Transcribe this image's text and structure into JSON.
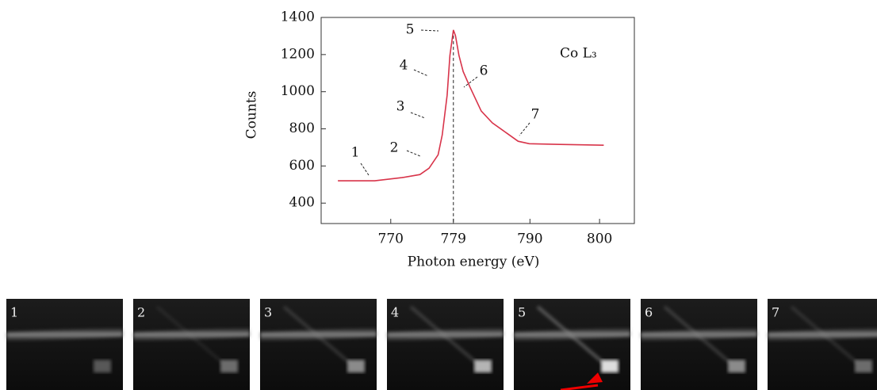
{
  "chart_data": {
    "type": "line",
    "x_label": "Photon energy (eV)",
    "y_label": "Counts",
    "inset_label": "Co L₃",
    "x": [
      762.4,
      767.7,
      771.6,
      774.2,
      775.5,
      776.8,
      777.4,
      778.1,
      778.5,
      779,
      779.3,
      779.8,
      780.4,
      781.4,
      783,
      784.6,
      786.7,
      788.3,
      789.9,
      794.3,
      800.6
    ],
    "values": [
      520,
      520,
      537,
      554,
      588,
      660,
      767,
      981,
      1195,
      1332,
      1302,
      1195,
      1109,
      1024,
      896,
      832,
      776,
      733,
      720,
      716,
      712
    ],
    "color": "#d8344a",
    "xlim": [
      760,
      805
    ],
    "xticks": [
      770,
      779,
      790,
      800
    ],
    "ylim": [
      290,
      1400
    ],
    "yticks": [
      400,
      600,
      800,
      1000,
      1200,
      1400
    ],
    "annotations": [
      "1",
      "2",
      "3",
      "4",
      "5",
      "6",
      "7"
    ]
  },
  "panels": [
    "1",
    "2",
    "3",
    "4",
    "5",
    "6",
    "7"
  ]
}
